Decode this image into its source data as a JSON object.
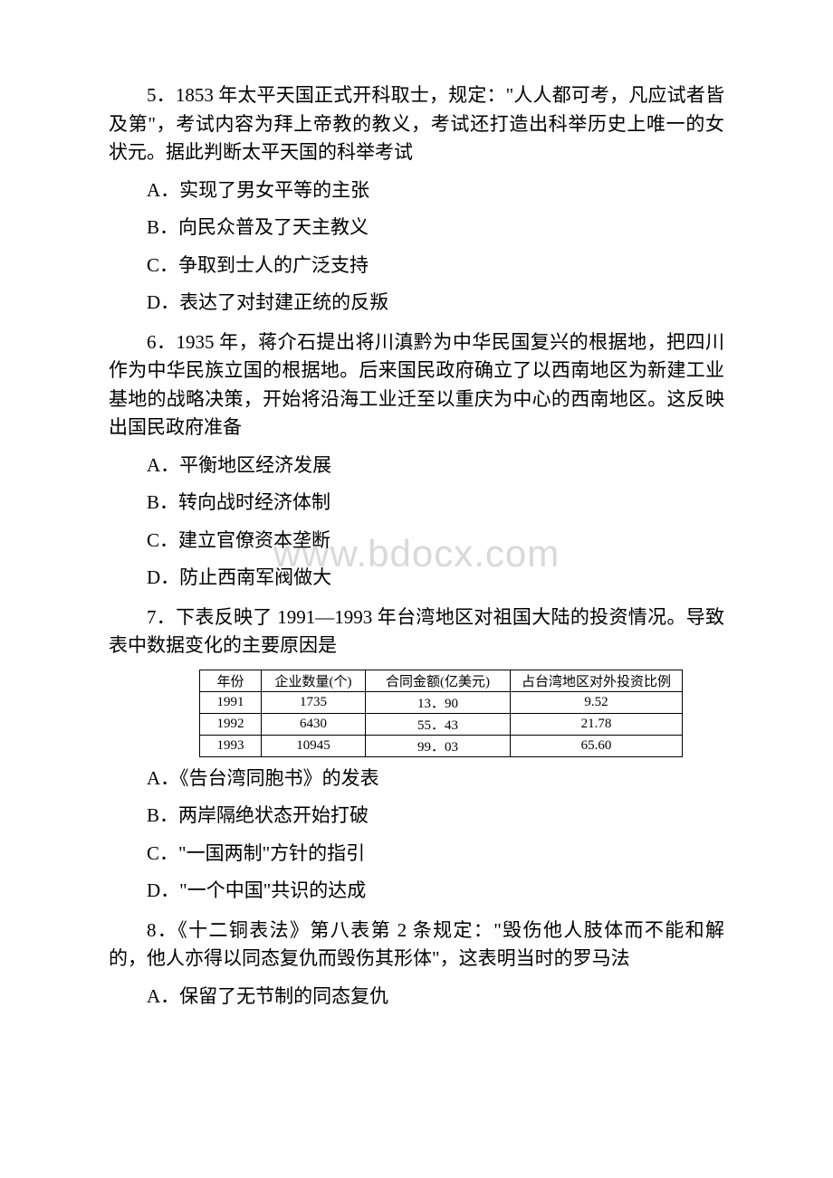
{
  "watermark": "www.bdocx.com",
  "questions": [
    {
      "stem": "5．1853 年太平天国正式开科取士，规定：\"人人都可考，凡应试者皆及第\"，考试内容为拜上帝教的教义，考试还打造出科举历史上唯一的女状元。据此判断太平天国的科举考试",
      "options": [
        "A．实现了男女平等的主张",
        "B．向民众普及了天主教义",
        "C．争取到士人的广泛支持",
        "D．表达了对封建正统的反叛"
      ]
    },
    {
      "stem": "6．1935 年，蒋介石提出将川滇黔为中华民国复兴的根据地，把四川作为中华民族立国的根据地。后来国民政府确立了以西南地区为新建工业基地的战略决策，开始将沿海工业迁至以重庆为中心的西南地区。这反映出国民政府准备",
      "options": [
        "A．平衡地区经济发展",
        "B．转向战时经济体制",
        "C．建立官僚资本垄断",
        "D．防止西南军阀做大"
      ]
    },
    {
      "stem": "7．下表反映了 1991—1993 年台湾地区对祖国大陆的投资情况。导致表中数据变化的主要原因是",
      "table": {
        "columns": [
          "年份",
          "企业数量(个)",
          "合同金额(亿美元)",
          "占台湾地区对外投资比例"
        ],
        "rows": [
          [
            "1991",
            "1735",
            "13．90",
            "9.52"
          ],
          [
            "1992",
            "6430",
            "55．43",
            "21.78"
          ],
          [
            "1993",
            "10945",
            "99．03",
            "65.60"
          ]
        ]
      },
      "options": [
        "A．《告台湾同胞书》的发表",
        "B．两岸隔绝状态开始打破",
        "C．\"一国两制\"方针的指引",
        "D．\"一个中国\"共识的达成"
      ]
    },
    {
      "stem": "8．《十二铜表法》第八表第 2 条规定：\"毁伤他人肢体而不能和解的，他人亦得以同态复仇而毁伤其形体\"，这表明当时的罗马法",
      "options": [
        "A．保留了无节制的同态复仇"
      ]
    }
  ]
}
